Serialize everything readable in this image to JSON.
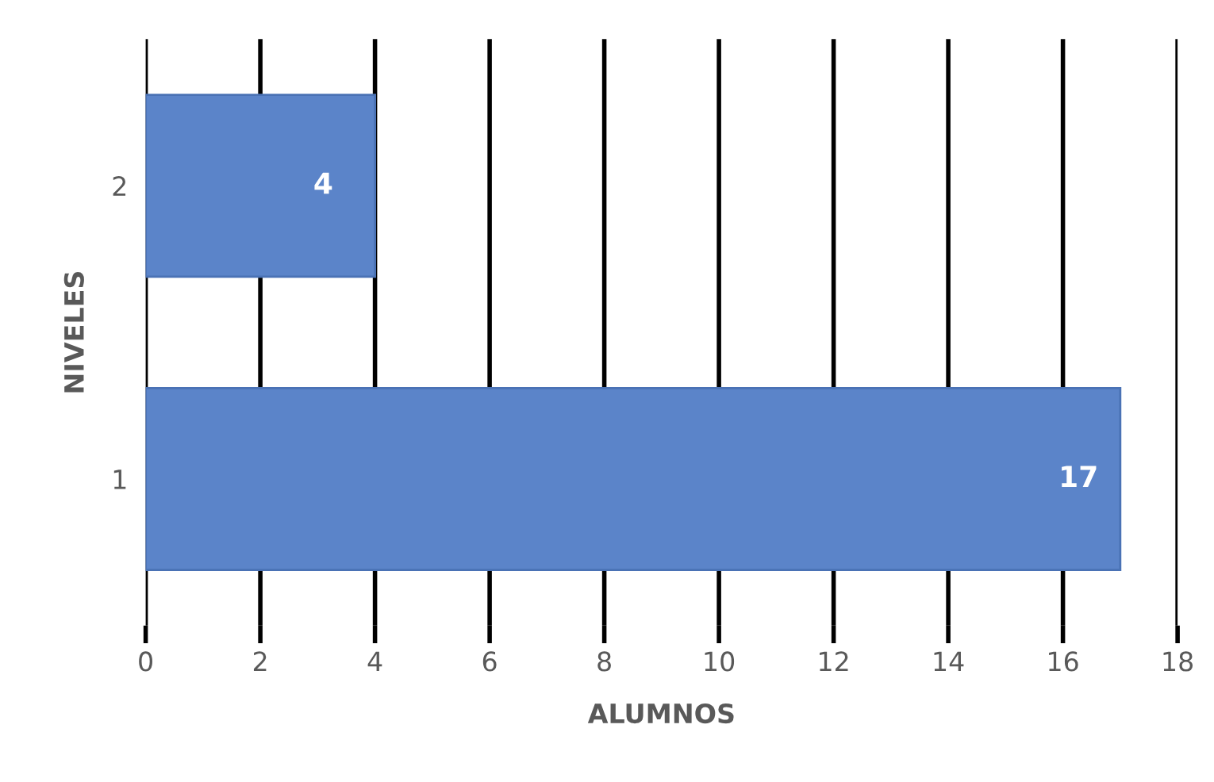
{
  "chart_data": {
    "type": "bar",
    "orientation": "horizontal",
    "xlabel": "ALUMNOS",
    "ylabel": "NIVELES",
    "categories": [
      "2",
      "1"
    ],
    "values": [
      4,
      17
    ],
    "color": "#5b84c9",
    "xlim": [
      0,
      18
    ],
    "xticks": [
      0,
      2,
      4,
      6,
      8,
      10,
      12,
      14,
      16,
      18
    ],
    "grid": "x",
    "data_labels": true
  }
}
